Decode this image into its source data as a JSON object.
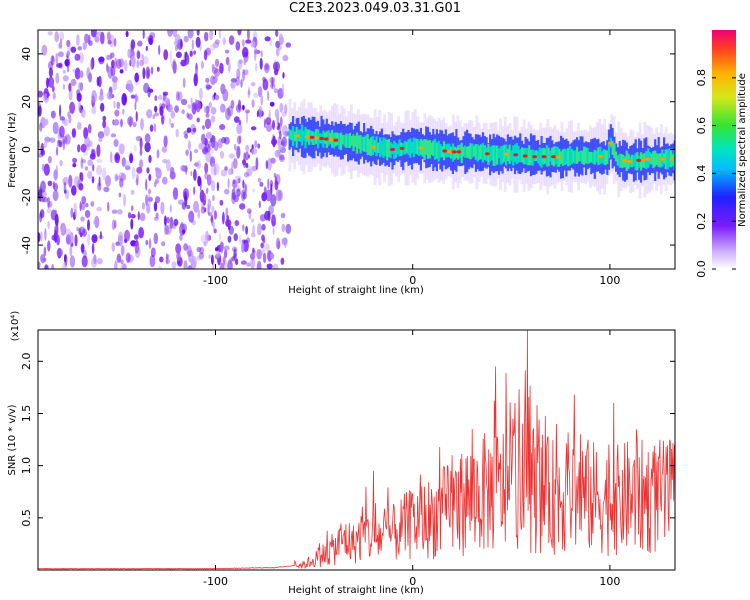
{
  "title": "C2E3.2023.049.03.31.G01",
  "chart_data": [
    {
      "type": "heatmap",
      "xlabel": "Height of straight line (km)",
      "ylabel": "Frequency (Hz)",
      "xlim": [
        -190,
        133
      ],
      "ylim": [
        -50,
        50
      ],
      "xticks": [
        -100,
        0,
        100
      ],
      "yticks": [
        -40,
        -20,
        0,
        20,
        40
      ],
      "noise_region_x": [
        -190,
        -63
      ],
      "ridge": {
        "x": [
          -63,
          -50,
          -40,
          -30,
          -20,
          -10,
          0,
          10,
          20,
          30,
          40,
          50,
          60,
          70,
          80,
          90,
          98,
          100,
          103,
          110,
          120,
          133
        ],
        "freq": [
          6,
          5,
          4,
          3,
          1,
          0,
          1,
          0,
          -1,
          -1,
          -2,
          -2,
          -3,
          -3,
          -3,
          -3,
          -3,
          3,
          -4,
          -5,
          -4,
          -4
        ]
      },
      "colorbar": {
        "label": "Normalized spectral amplitude",
        "ticks": [
          0.0,
          0.2,
          0.4,
          0.6,
          0.8
        ],
        "tick_labels": [
          "0.0",
          "0.2",
          "0.4",
          "0.6",
          "0.8"
        ],
        "range": [
          0,
          1
        ]
      },
      "colors": {
        "noise": "#8a2be2",
        "ridge_core": "#e02020",
        "ridge_mid": "#2ee58e",
        "ridge_edge": "#3344ff"
      }
    },
    {
      "type": "line",
      "xlabel": "Height of straight line (km)",
      "ylabel": "SNR (10 * v/v)",
      "yscale_label": "(x10⁴)",
      "xlim": [
        -190,
        133
      ],
      "ylim": [
        0,
        2.3
      ],
      "xticks": [
        -100,
        0,
        100
      ],
      "yticks": [
        0.5,
        1.0,
        1.5,
        2.0
      ],
      "ytick_labels": [
        "0.5",
        "1.0",
        "1.5",
        "2.0"
      ],
      "color": "#ee3333",
      "series": [
        {
          "x": [
            -190,
            -150,
            -100,
            -70,
            -55,
            -45,
            -40,
            -35,
            -30,
            -25,
            -20,
            -10,
            0,
            10,
            20,
            30,
            40,
            50,
            60,
            70,
            80,
            90,
            100,
            110,
            120,
            133
          ],
          "y": [
            0.01,
            0.01,
            0.01,
            0.02,
            0.05,
            0.15,
            0.2,
            0.3,
            0.25,
            0.35,
            0.3,
            0.35,
            0.45,
            0.5,
            0.6,
            0.7,
            0.75,
            0.8,
            0.8,
            0.7,
            0.75,
            0.7,
            0.65,
            0.7,
            0.7,
            0.7
          ]
        }
      ],
      "peaks": [
        {
          "x": 58,
          "y": 2.3
        },
        {
          "x": 42,
          "y": 1.95
        },
        {
          "x": 52,
          "y": 1.6
        },
        {
          "x": 63,
          "y": 1.58
        },
        {
          "x": 102,
          "y": 1.6
        },
        {
          "x": 73,
          "y": 1.4
        },
        {
          "x": 30,
          "y": 1.35
        },
        {
          "x": 85,
          "y": 1.3
        },
        {
          "x": 20,
          "y": 1.1
        },
        {
          "x": -20,
          "y": 0.95
        }
      ]
    }
  ]
}
